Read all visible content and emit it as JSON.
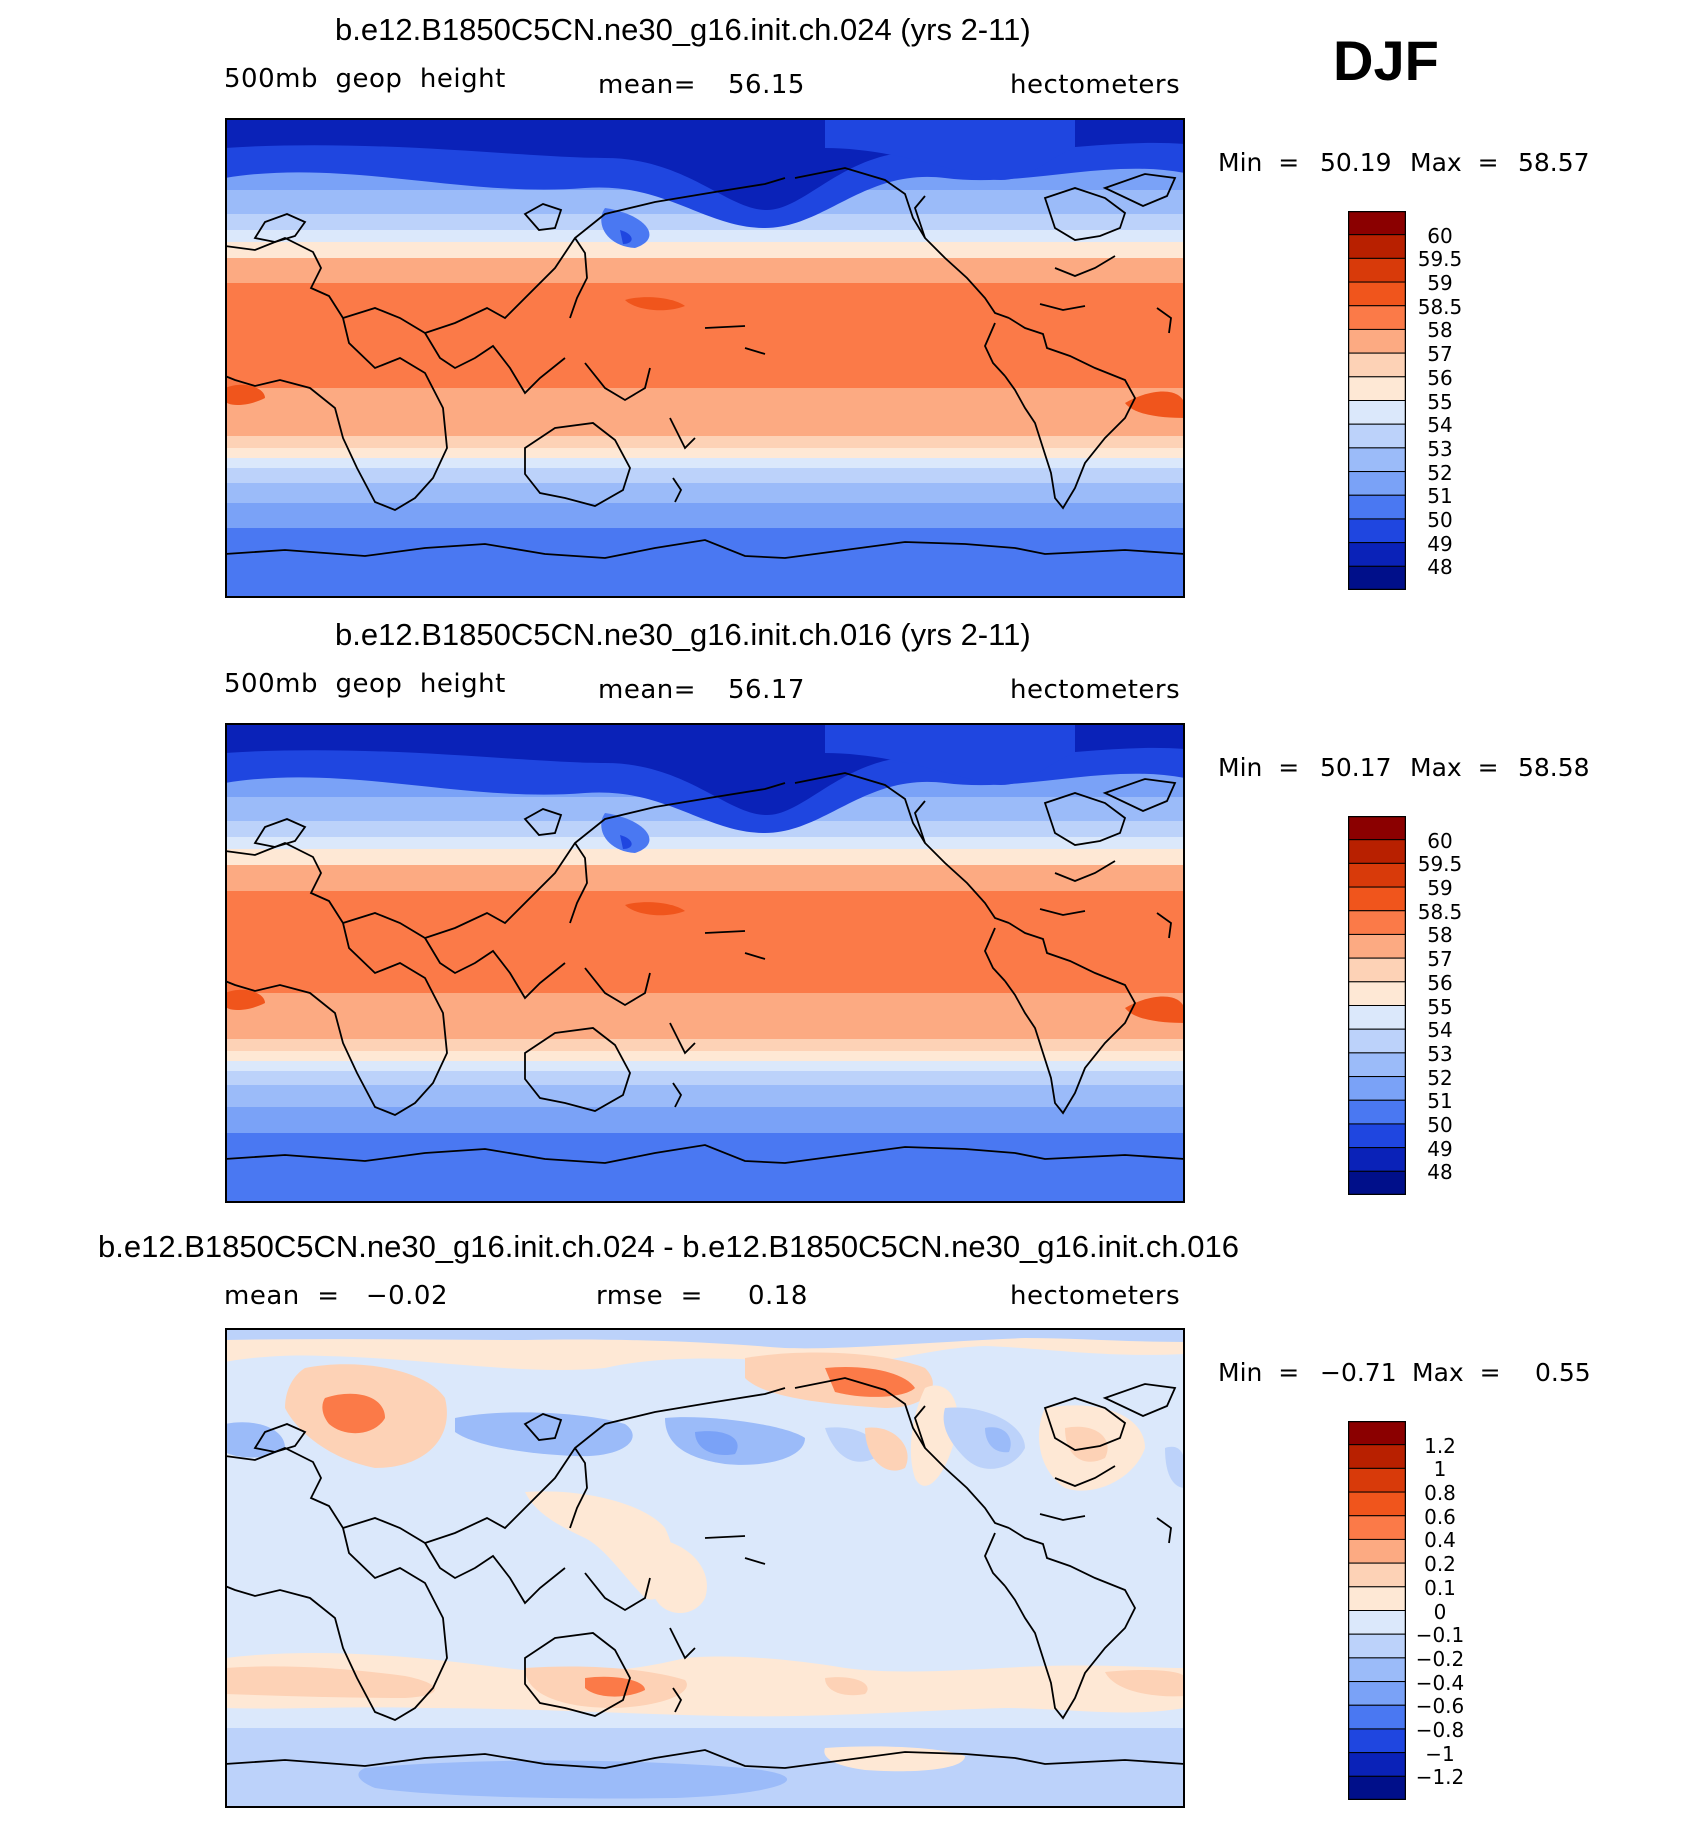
{
  "season": "DJF",
  "panels": [
    {
      "title": "b.e12.B1850C5CN.ne30_g16.init.ch.024 (yrs 2-11)",
      "sub_left": "500mb  geop  height",
      "sub_mid_label": "mean=",
      "sub_mid_value": "56.15",
      "units": "hectometers",
      "min_label": "Min  =",
      "min_value": "50.19",
      "max_label": "Max  =",
      "max_value": "58.57",
      "colorbar_labels": [
        "60",
        "59.5",
        "59",
        "58.5",
        "58",
        "57",
        "56",
        "55",
        "54",
        "53",
        "52",
        "51",
        "50",
        "49",
        "48"
      ]
    },
    {
      "title": "b.e12.B1850C5CN.ne30_g16.init.ch.016 (yrs 2-11)",
      "sub_left": "500mb  geop  height",
      "sub_mid_label": "mean=",
      "sub_mid_value": "56.17",
      "units": "hectometers",
      "min_label": "Min  =",
      "min_value": "50.17",
      "max_label": "Max  =",
      "max_value": "58.58",
      "colorbar_labels": [
        "60",
        "59.5",
        "59",
        "58.5",
        "58",
        "57",
        "56",
        "55",
        "54",
        "53",
        "52",
        "51",
        "50",
        "49",
        "48"
      ]
    },
    {
      "title": "b.e12.B1850C5CN.ne30_g16.init.ch.024 - b.e12.B1850C5CN.ne30_g16.init.ch.016",
      "sub_left": "mean  =   −0.02",
      "sub_mid_label": "rmse  =",
      "sub_mid_value": "0.18",
      "units": "hectometers",
      "min_label": "Min  =",
      "min_value": "−0.71",
      "max_label": "Max  =",
      "max_value": "0.55",
      "colorbar_labels": [
        "1.2",
        "1",
        "0.8",
        "0.6",
        "0.4",
        "0.2",
        "0.1",
        "0",
        "−0.1",
        "−0.2",
        "−0.4",
        "−0.6",
        "−0.8",
        "−1",
        "−1.2"
      ]
    }
  ],
  "colors": {
    "scale": [
      "#8b0000",
      "#b82000",
      "#d83a0a",
      "#f0551c",
      "#fb7a48",
      "#fcaa82",
      "#fdd2b6",
      "#fee8d5",
      "#dbe8fb",
      "#bcd2fa",
      "#9bbbf9",
      "#7aa2f7",
      "#4a78f2",
      "#1f46e0",
      "#0a22b8",
      "#000f8a"
    ],
    "coast": "#000000"
  }
}
